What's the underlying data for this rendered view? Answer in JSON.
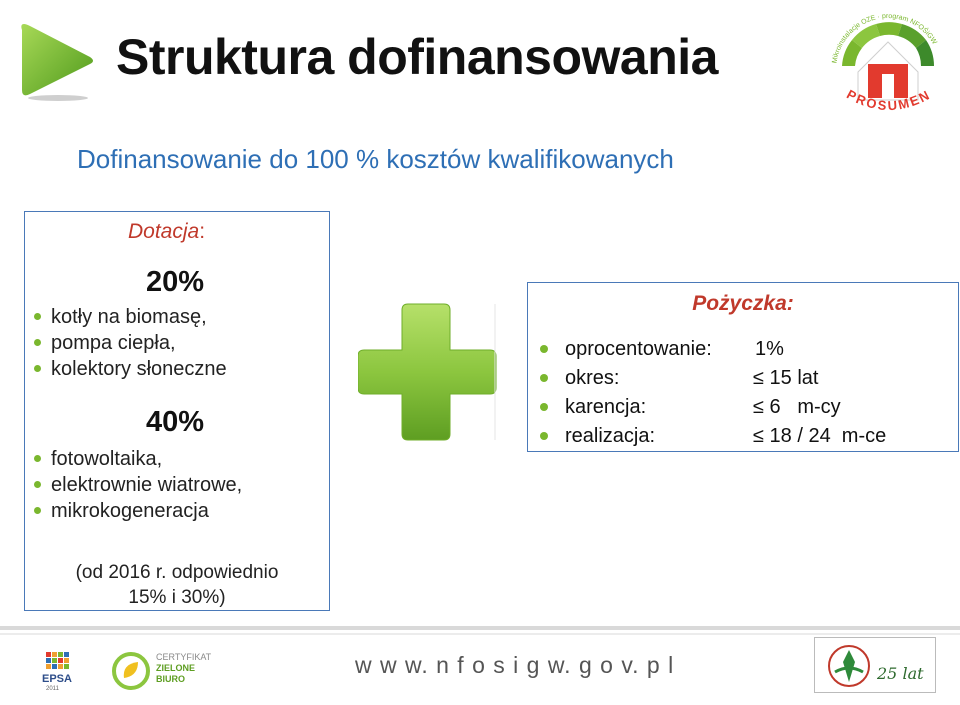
{
  "header": {
    "title": "Struktura dofinansowania",
    "logo_arc_text": "Mikroinstalacje OZE · program NFOŚiGW",
    "logo_text": "PROSUMENT"
  },
  "subtitle": "Dofinansowanie do 100 % kosztów kwalifikowanych",
  "dotacja": {
    "heading": "Dotacja",
    "colon": ":",
    "tier1": {
      "percent": "20%",
      "items": [
        "kotły na biomasę,",
        "pompa ciepła,",
        "kolektory słoneczne"
      ]
    },
    "tier2": {
      "percent": "40%",
      "items": [
        "fotowoltaika,",
        "elektrownie wiatrowe,",
        "mikrokogeneracja"
      ]
    },
    "note_line1": "(od 2016 r. odpowiednio",
    "note_line2": "15% i 30%)"
  },
  "pozyczka": {
    "heading": "Pożyczka:",
    "rows": [
      {
        "label": "oprocentowanie:",
        "value": "1%"
      },
      {
        "label": "okres:",
        "value": "≤ 15 lat"
      },
      {
        "label": "karencja:",
        "value": "≤ 6   m-cy"
      },
      {
        "label": "realizacja:",
        "value": "≤ 18 / 24  m-ce"
      }
    ]
  },
  "footer": {
    "url": "w w w. n f o s i g w. g o v. p l",
    "epsa_text": "EPSA",
    "epsa_year": "2011",
    "cert_line1": "CERTYFIKAT",
    "cert_line2": "ZIELONE",
    "cert_line3": "BIURO",
    "nfos_text": "25 lat"
  },
  "colors": {
    "accent_blue": "#2e6fb5",
    "heading_red": "#c0392b",
    "bullet_green": "#7ab72e",
    "plus_green": "#8cc63f"
  }
}
